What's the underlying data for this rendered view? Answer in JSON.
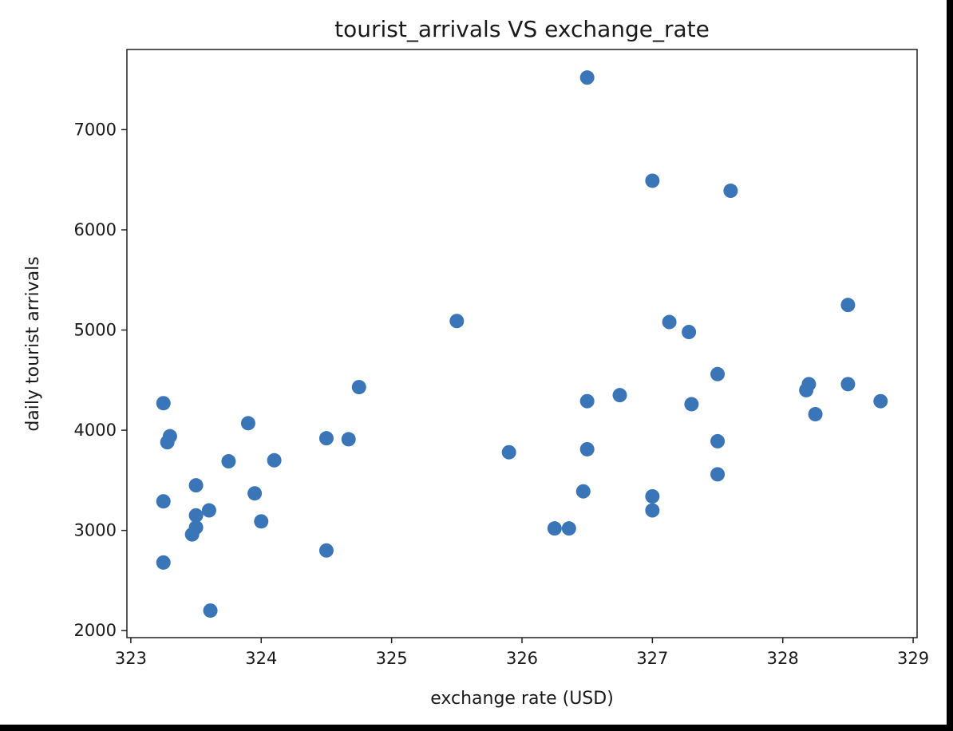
{
  "chart_data": {
    "type": "scatter",
    "title": "tourist_arrivals VS exchange_rate",
    "xlabel": "exchange rate (USD)",
    "ylabel": "daily tourist arrivals",
    "xlim": [
      322.97,
      329.03
    ],
    "ylim": [
      1930,
      7800
    ],
    "xticks": [
      323,
      324,
      325,
      326,
      327,
      328,
      329
    ],
    "yticks": [
      2000,
      3000,
      4000,
      5000,
      6000,
      7000
    ],
    "grid": false,
    "marker_color": "#3a75b8",
    "series": [
      {
        "points": [
          [
            323.25,
            4270
          ],
          [
            323.3,
            3940
          ],
          [
            323.28,
            3880
          ],
          [
            323.25,
            3290
          ],
          [
            323.25,
            2680
          ],
          [
            323.5,
            3450
          ],
          [
            323.5,
            3150
          ],
          [
            323.5,
            3030
          ],
          [
            323.47,
            2960
          ],
          [
            323.6,
            3200
          ],
          [
            323.61,
            2200
          ],
          [
            323.75,
            3690
          ],
          [
            323.9,
            4070
          ],
          [
            323.95,
            3370
          ],
          [
            324.0,
            3090
          ],
          [
            324.1,
            3700
          ],
          [
            324.5,
            3920
          ],
          [
            324.67,
            3910
          ],
          [
            324.5,
            2800
          ],
          [
            324.75,
            4430
          ],
          [
            325.5,
            5090
          ],
          [
            325.9,
            3780
          ],
          [
            326.25,
            3020
          ],
          [
            326.36,
            3020
          ],
          [
            326.47,
            3390
          ],
          [
            326.5,
            3810
          ],
          [
            326.5,
            4290
          ],
          [
            326.5,
            7520
          ],
          [
            326.75,
            4350
          ],
          [
            327.0,
            6490
          ],
          [
            327.0,
            3340
          ],
          [
            327.0,
            3200
          ],
          [
            327.13,
            5080
          ],
          [
            327.28,
            4980
          ],
          [
            327.3,
            4260
          ],
          [
            327.5,
            4560
          ],
          [
            327.5,
            3890
          ],
          [
            327.5,
            3560
          ],
          [
            327.6,
            6390
          ],
          [
            328.18,
            4400
          ],
          [
            328.2,
            4460
          ],
          [
            328.25,
            4160
          ],
          [
            328.5,
            5250
          ],
          [
            328.5,
            4460
          ],
          [
            328.75,
            4290
          ]
        ]
      }
    ]
  }
}
